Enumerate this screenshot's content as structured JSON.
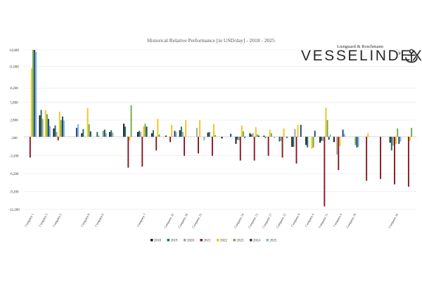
{
  "brand": {
    "publisher": "Lienguard & Roschmann",
    "name": "VESSELINDEX",
    "registered": "®",
    "icon": "anchor-icon"
  },
  "colors": {
    "2018": "#1a1a1a",
    "2019": "#1e6e6a",
    "2020": "#a5a5a5",
    "2021": "#8b1a26",
    "2022": "#f5c518",
    "2023": "#70ad47",
    "2024": "#264478",
    "2025": "#7fb4e6",
    "gridline": "#d9d9d9",
    "zero_line": "#bfbfbf",
    "title": "#555555"
  },
  "chart_data": {
    "type": "bar",
    "title": "Historical Relative Performance [in USD/day] - 2018 - 2025",
    "xlabel": "",
    "ylabel": "",
    "ylim": [
      -12200,
      14600
    ],
    "yticks": [
      "14,600",
      "11,800",
      "8,200",
      "5,800",
      "2,800",
      "-200",
      "-3,200",
      "-6,200",
      "-9,200",
      "-12,200"
    ],
    "ytick_values": [
      14600,
      11800,
      8200,
      5800,
      2800,
      -200,
      -3200,
      -6200,
      -9200,
      -12200
    ],
    "grid": true,
    "legend_position": "bottom",
    "series_names": [
      "2018",
      "2019",
      "2020",
      "2021",
      "2022",
      "2023",
      "2024",
      "2025"
    ],
    "groups": [
      {
        "label": "Company 1",
        "values": [
          null,
          null,
          null,
          -3500,
          11500,
          14600,
          14600,
          14300
        ]
      },
      {
        "label": "Company 3",
        "values": [
          3600,
          4500,
          3000,
          null,
          4500,
          3800,
          3000,
          1800
        ]
      },
      {
        "label": "Company 2",
        "values": [
          1400,
          1900,
          800,
          -600,
          4200,
          2800,
          3400,
          2700
        ]
      },
      {
        "label": "",
        "values": [
          null,
          null,
          null,
          null,
          null,
          null,
          1500,
          2100
        ]
      },
      {
        "label": "Company 8",
        "values": [
          600,
          1300,
          null,
          null,
          4800,
          2100,
          900,
          null
        ]
      },
      {
        "label": "Company 6",
        "values": [
          null,
          800,
          200,
          null,
          null,
          1000,
          1200,
          600
        ]
      },
      {
        "label": "",
        "values": [
          800,
          1100,
          700,
          null,
          null,
          null,
          null,
          null
        ]
      },
      {
        "label": "",
        "values": [
          2200,
          1700,
          null,
          -5200,
          -600,
          5300,
          null,
          null
        ]
      },
      {
        "label": "Company 7",
        "values": [
          800,
          1000,
          800,
          -5000,
          1800,
          2200,
          1700,
          null
        ]
      },
      {
        "label": "",
        "values": [
          600,
          1100,
          null,
          -2300,
          3000,
          400,
          null,
          null
        ]
      },
      {
        "label": "Company 10",
        "values": [
          200,
          null,
          null,
          -900,
          2000,
          null,
          1000,
          800
        ]
      },
      {
        "label": "Company 18",
        "values": [
          1100,
          1700,
          800,
          -3200,
          2800,
          null,
          null,
          null
        ]
      },
      {
        "label": "Company 15",
        "values": [
          null,
          null,
          1500,
          -2800,
          2800,
          null,
          null,
          -600
        ]
      },
      {
        "label": "",
        "values": [
          700,
          800,
          null,
          -3200,
          2100,
          300,
          null,
          null
        ]
      },
      {
        "label": "",
        "values": [
          -300,
          null,
          null,
          null,
          null,
          null,
          500,
          null
        ]
      },
      {
        "label": "Company 14",
        "values": [
          -1200,
          -500,
          -600,
          -4000,
          1900,
          900,
          -200,
          null
        ]
      },
      {
        "label": "Company 13",
        "values": [
          600,
          400,
          600,
          -4000,
          1600,
          400,
          200,
          null
        ]
      },
      {
        "label": "Company 17",
        "values": [
          200,
          -200,
          null,
          -3200,
          1200,
          600,
          null,
          -200
        ]
      },
      {
        "label": "Company 12",
        "values": [
          null,
          -800,
          -700,
          -3500,
          1400,
          null,
          -200,
          null
        ]
      },
      {
        "label": "Company 9",
        "values": [
          -1700,
          -1700,
          1300,
          -4500,
          2000,
          null,
          2000,
          null
        ]
      },
      {
        "label": "Company 4",
        "values": [
          -1400,
          -1800,
          null,
          null,
          -2000,
          -1800,
          1000,
          null
        ]
      },
      {
        "label": "Company 11",
        "values": [
          -1000,
          -700,
          -700,
          -11700,
          4900,
          2800,
          -500,
          400
        ]
      },
      {
        "label": "Company 5",
        "values": [
          -900,
          null,
          -3000,
          -5600,
          -1600,
          null,
          1200,
          500
        ]
      },
      {
        "label": "Company 19",
        "values": [
          null,
          null,
          null,
          null,
          null,
          -1400,
          -1800,
          -1700
        ]
      },
      {
        "label": "",
        "values": [
          null,
          null,
          null,
          -7400,
          600,
          null,
          null,
          null
        ]
      },
      {
        "label": "",
        "values": [
          null,
          null,
          null,
          -7100,
          null,
          null,
          null,
          null
        ]
      },
      {
        "label": "Company 16",
        "values": [
          -1000,
          -2300,
          -1500,
          -8000,
          -1200,
          1400,
          -1200,
          -800
        ]
      },
      {
        "label": "",
        "values": [
          null,
          null,
          null,
          -8400,
          -700,
          1500,
          null,
          null
        ]
      }
    ]
  }
}
